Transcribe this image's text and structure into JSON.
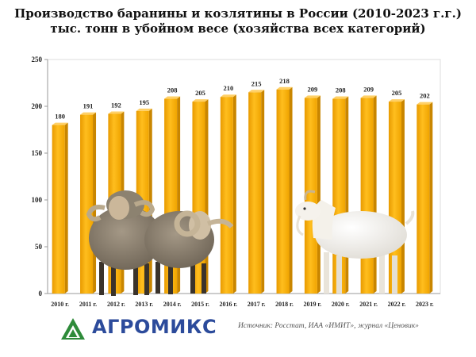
{
  "header": {
    "title_line1": "Производство баранины и козлятины в России (2010-2023 г.г.)",
    "title_line2": "тыс. тонн в убойном весе (хозяйства всех категорий)"
  },
  "chart_data": {
    "type": "bar",
    "title": "Производство баранины и козлятины в России (2010-2023 г.г.) тыс. тонн в убойном весе (хозяйства всех категорий)",
    "categories": [
      "2010 г.",
      "2011 г.",
      "2012 г.",
      "2013 г.",
      "2014 г.",
      "2015 г.",
      "2016 г.",
      "2017 г.",
      "2018 г.",
      "2019 г.",
      "2020 г.",
      "2021 г.",
      "2022 г.",
      "2023 г."
    ],
    "values": [
      180,
      191,
      192,
      195,
      208,
      205,
      210,
      215,
      218,
      209,
      208,
      209,
      205,
      202
    ],
    "data_labels": [
      "180",
      "191",
      "192",
      "195",
      "208",
      "205",
      "210",
      "215",
      "218",
      "209",
      "208",
      "209",
      "205",
      "202"
    ],
    "y_ticks": [
      "0",
      "50",
      "100",
      "150",
      "200",
      "250"
    ],
    "ylim": [
      0,
      250
    ],
    "grid": false,
    "bar_color": "#ffb300",
    "xlabel": "",
    "ylabel": ""
  },
  "brand": {
    "name": "АГРОМИКС",
    "color": "#2c4b9b",
    "accent": "#2e8b3a"
  },
  "footer": {
    "source": "Источник: Росстат, ИАА «ИМИТ», журнал «Ценовик»"
  }
}
